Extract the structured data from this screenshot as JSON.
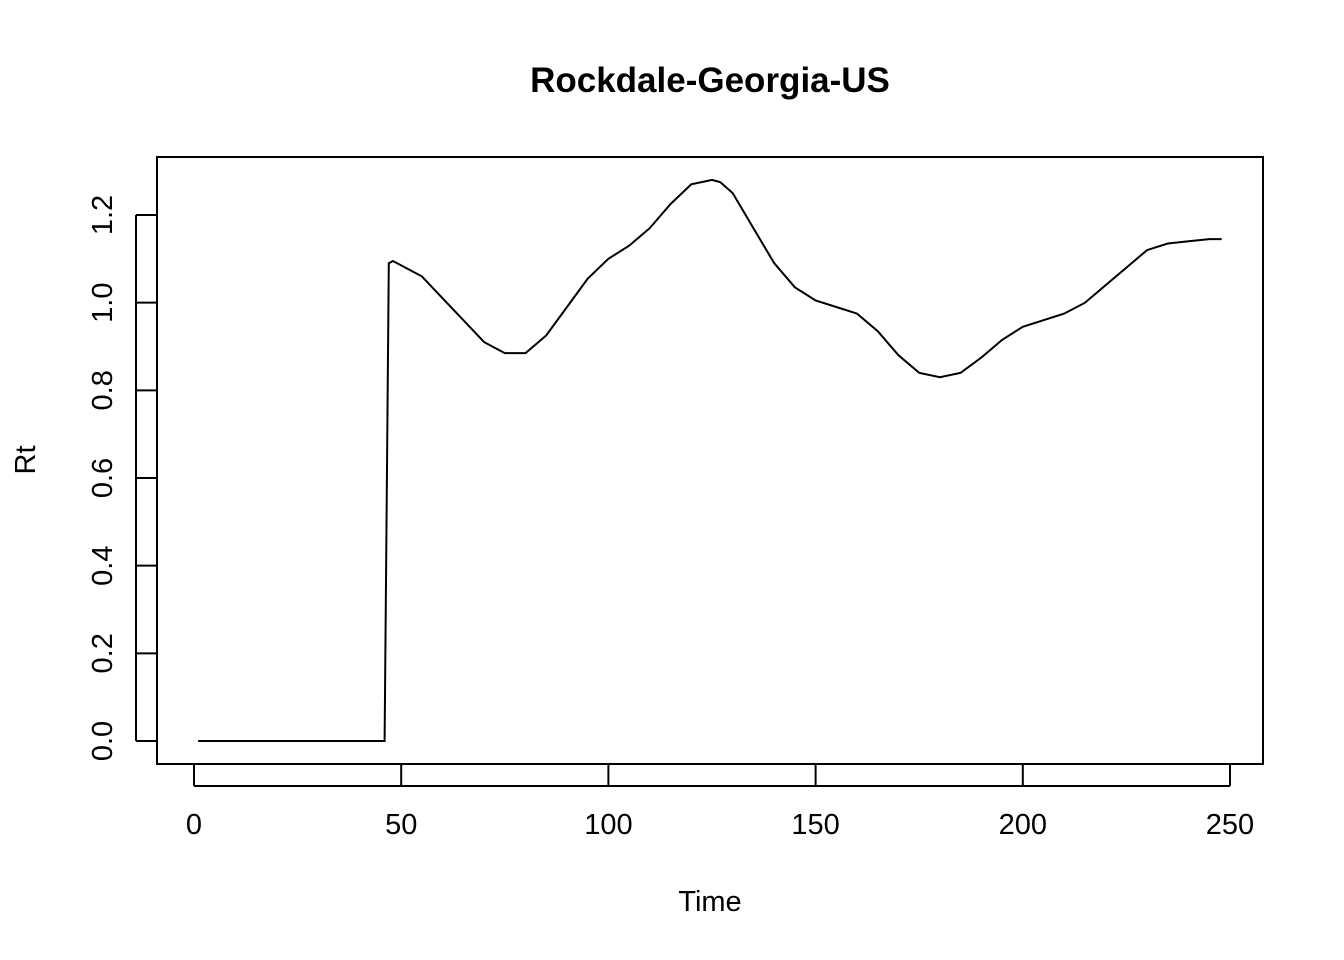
{
  "chart_data": {
    "type": "line",
    "title": "Rockdale-Georgia-US",
    "xlabel": "Time",
    "ylabel": "Rt",
    "xlim": [
      0,
      250
    ],
    "ylim": [
      0.0,
      1.2
    ],
    "x_ticks": [
      0,
      50,
      100,
      150,
      200,
      250
    ],
    "y_ticks": [
      0.0,
      0.2,
      0.4,
      0.6,
      0.8,
      1.0,
      1.2
    ],
    "x_tick_labels": [
      "0",
      "50",
      "100",
      "150",
      "200",
      "250"
    ],
    "y_tick_labels": [
      "0.0",
      "0.2",
      "0.4",
      "0.6",
      "0.8",
      "1.0",
      "1.2"
    ],
    "grid": false,
    "legend": "none",
    "line_color": "#000000",
    "series": [
      {
        "x": [
          1,
          10,
          20,
          30,
          40,
          46,
          47,
          48,
          50,
          55,
          60,
          65,
          70,
          75,
          80,
          85,
          90,
          95,
          100,
          105,
          110,
          115,
          120,
          125,
          127,
          130,
          135,
          140,
          145,
          150,
          155,
          160,
          165,
          170,
          175,
          180,
          185,
          190,
          195,
          200,
          205,
          210,
          215,
          220,
          225,
          230,
          235,
          240,
          245,
          248
        ],
        "y": [
          0.0,
          0.0,
          0.0,
          0.0,
          0.0,
          0.0,
          1.09,
          1.095,
          1.085,
          1.06,
          1.01,
          0.96,
          0.91,
          0.885,
          0.885,
          0.925,
          0.99,
          1.055,
          1.1,
          1.13,
          1.17,
          1.225,
          1.27,
          1.28,
          1.275,
          1.25,
          1.17,
          1.09,
          1.035,
          1.005,
          0.99,
          0.975,
          0.935,
          0.88,
          0.84,
          0.83,
          0.84,
          0.875,
          0.915,
          0.945,
          0.96,
          0.975,
          1.0,
          1.04,
          1.08,
          1.12,
          1.135,
          1.14,
          1.145,
          1.145
        ]
      }
    ]
  }
}
